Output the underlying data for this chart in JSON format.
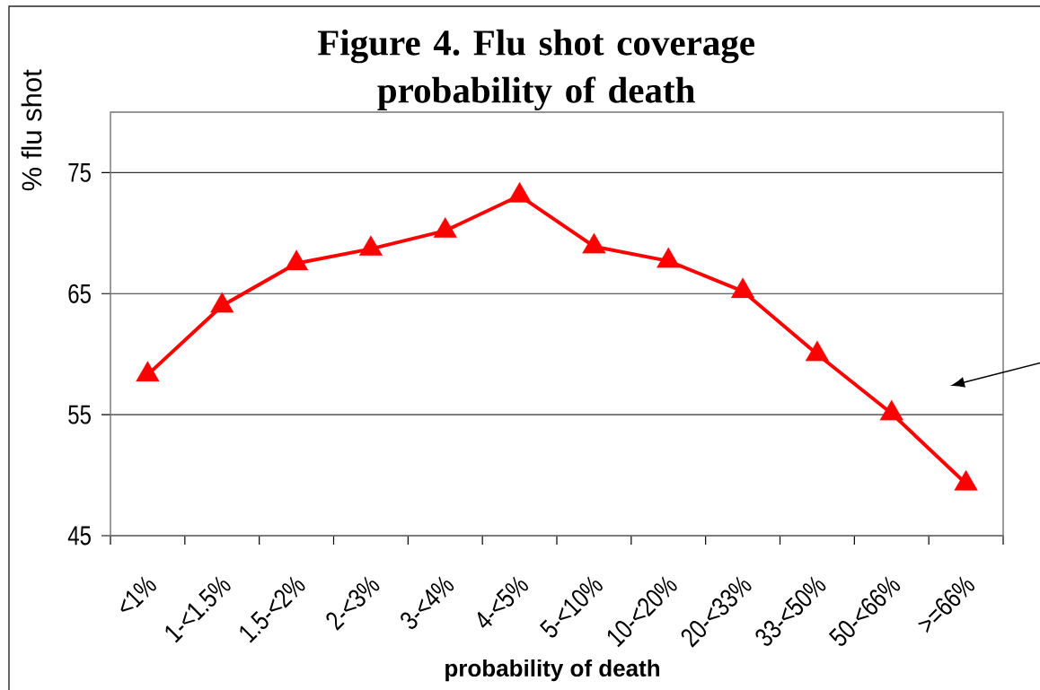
{
  "chart_data": {
    "type": "line",
    "title": "Figure 4. Flu shot coverage probability of death",
    "xlabel": "probability of death",
    "ylabel": "% flu shot",
    "categories": [
      "<1%",
      "1-<1.5%",
      "1.5-<2%",
      "2-<3%",
      "3-<4%",
      "4-<5%",
      "5-<10%",
      "10-<20%",
      "20-<33%",
      "33-<50%",
      "50-<66%",
      ">=66%"
    ],
    "series": [
      {
        "color": "#ff0000",
        "values": [
          58.3,
          64.0,
          67.5,
          68.7,
          70.2,
          73.1,
          68.9,
          67.7,
          65.2,
          60.0,
          55.1,
          49.3
        ]
      }
    ],
    "ylim": [
      45,
      80
    ],
    "yticks": [
      45,
      55,
      65,
      75
    ],
    "grid": "y",
    "marker": "triangle",
    "line_style": "solid"
  }
}
